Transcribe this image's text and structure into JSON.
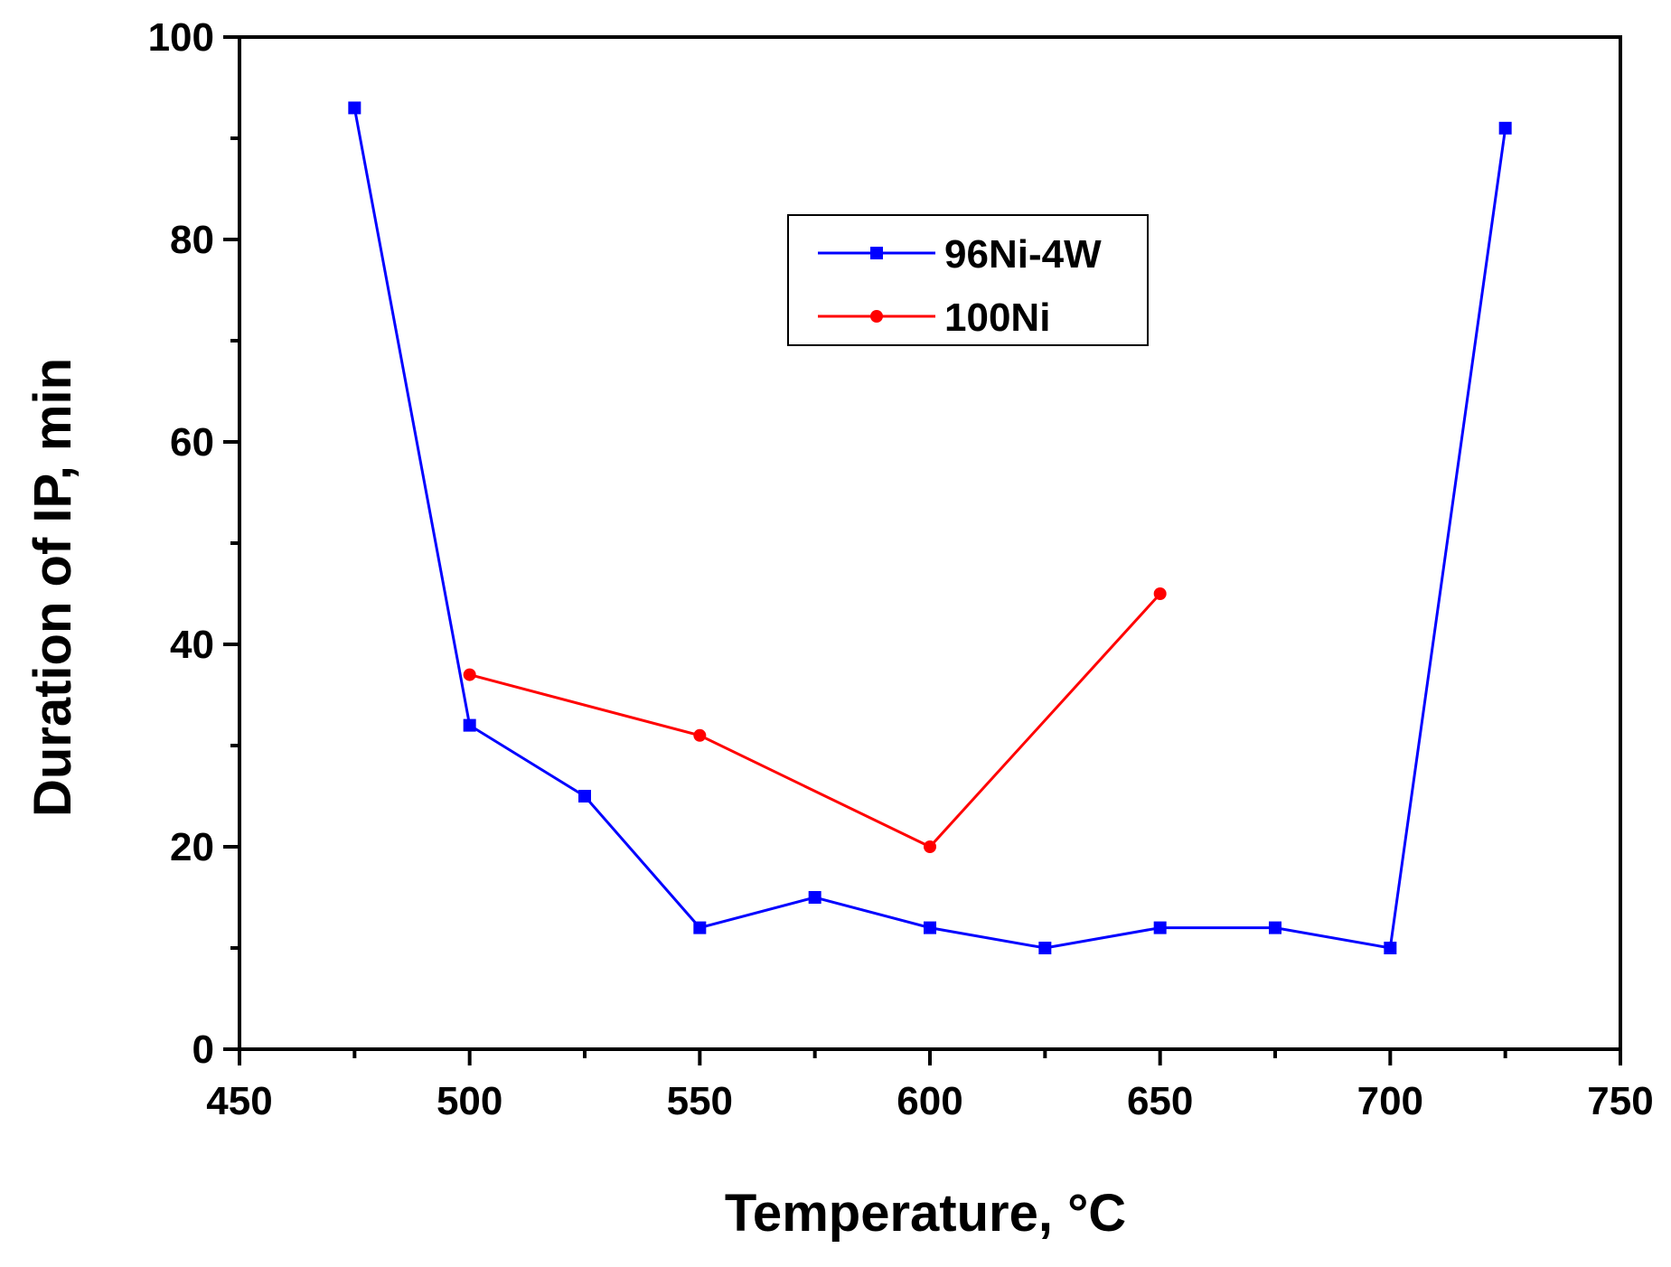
{
  "chart_data": {
    "type": "line",
    "title": "",
    "xlabel": "Temperature, °C",
    "ylabel": "Duration of IP, min",
    "xlim": [
      450,
      750
    ],
    "ylim": [
      0,
      100
    ],
    "xticks": [
      450,
      500,
      550,
      600,
      650,
      700,
      750
    ],
    "yticks": [
      0,
      20,
      40,
      60,
      80,
      100
    ],
    "x_minor_step": 25,
    "y_minor_step": 10,
    "grid": false,
    "legend_position": "top-center",
    "series": [
      {
        "name": "96Ni-4W",
        "color": "#0000ff",
        "marker": "square",
        "x": [
          475,
          500,
          525,
          550,
          575,
          600,
          625,
          650,
          675,
          700,
          725
        ],
        "y": [
          93,
          32,
          25,
          12,
          15,
          12,
          10,
          12,
          12,
          10,
          91
        ]
      },
      {
        "name": "100Ni",
        "color": "#ff0000",
        "marker": "circle",
        "x": [
          500,
          550,
          600,
          650
        ],
        "y": [
          37,
          31,
          20,
          45
        ]
      }
    ]
  }
}
